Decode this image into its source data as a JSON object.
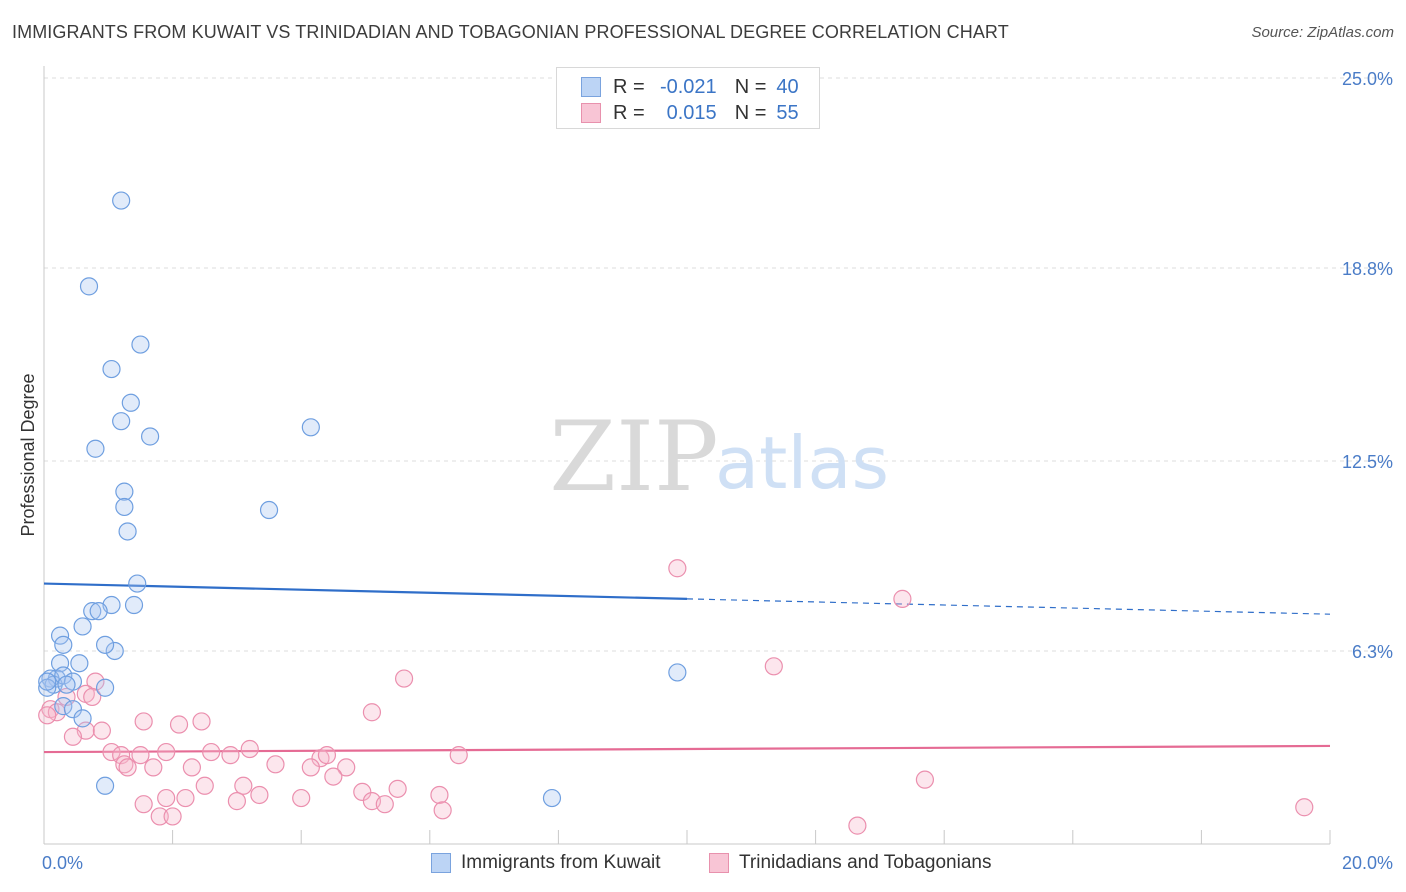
{
  "title": "IMMIGRANTS FROM KUWAIT VS TRINIDADIAN AND TOBAGONIAN PROFESSIONAL DEGREE CORRELATION CHART",
  "source": "Source: ZipAtlas.com",
  "watermark": {
    "zip": "ZIP",
    "atlas": "atlas"
  },
  "legend": {
    "r_label": "R =",
    "n_label": "N =",
    "rows": [
      {
        "r": "-0.021",
        "n": "40"
      },
      {
        "r": "0.015",
        "n": "55"
      }
    ]
  },
  "bottom_legend": [
    "Immigrants from Kuwait",
    "Trinidadians and Tobagonians"
  ],
  "chart_data": {
    "type": "scatter",
    "title": "IMMIGRANTS FROM KUWAIT VS TRINIDADIAN AND TOBAGONIAN PROFESSIONAL DEGREE CORRELATION CHART",
    "xlabel": "",
    "ylabel": "Professional Degree",
    "xlim": [
      0,
      20
    ],
    "ylim": [
      0,
      25
    ],
    "x_tick_labels": [
      "0.0%",
      "20.0%"
    ],
    "y_ticks": [
      6.3,
      12.5,
      18.8,
      25.0
    ],
    "y_tick_labels": [
      "6.3%",
      "12.5%",
      "18.8%",
      "25.0%"
    ],
    "grid": true,
    "colors": {
      "kuwait": "#6f9fe0",
      "trinidad": "#eb8fae",
      "kuwait_line": "#2f6ec9",
      "trinidad_line": "#e56b94"
    },
    "series": [
      {
        "name": "Immigrants from Kuwait",
        "r": -0.021,
        "n": 40,
        "trend": {
          "x": [
            0,
            20
          ],
          "y": [
            8.5,
            7.5
          ],
          "solid_until": 10
        },
        "points": [
          [
            1.2,
            21.0
          ],
          [
            0.7,
            18.2
          ],
          [
            1.5,
            16.3
          ],
          [
            1.05,
            15.5
          ],
          [
            1.35,
            14.4
          ],
          [
            1.2,
            13.8
          ],
          [
            1.65,
            13.3
          ],
          [
            0.8,
            12.9
          ],
          [
            4.15,
            13.6
          ],
          [
            1.25,
            11.5
          ],
          [
            1.25,
            11.0
          ],
          [
            1.3,
            10.2
          ],
          [
            3.5,
            10.9
          ],
          [
            1.45,
            8.5
          ],
          [
            1.05,
            7.8
          ],
          [
            1.4,
            7.8
          ],
          [
            0.75,
            7.6
          ],
          [
            0.85,
            7.6
          ],
          [
            0.6,
            7.1
          ],
          [
            0.25,
            6.8
          ],
          [
            0.3,
            6.5
          ],
          [
            1.1,
            6.3
          ],
          [
            0.95,
            6.5
          ],
          [
            0.55,
            5.9
          ],
          [
            0.25,
            5.9
          ],
          [
            0.2,
            5.4
          ],
          [
            0.1,
            5.4
          ],
          [
            0.15,
            5.2
          ],
          [
            0.05,
            5.1
          ],
          [
            0.3,
            5.5
          ],
          [
            0.45,
            5.3
          ],
          [
            0.35,
            5.2
          ],
          [
            0.95,
            5.1
          ],
          [
            0.3,
            4.5
          ],
          [
            0.45,
            4.4
          ],
          [
            0.6,
            4.1
          ],
          [
            0.95,
            1.9
          ],
          [
            7.9,
            1.5
          ],
          [
            9.85,
            5.6
          ],
          [
            0.05,
            5.3
          ]
        ]
      },
      {
        "name": "Trinidadians and Tobagonians",
        "r": 0.015,
        "n": 55,
        "trend": {
          "x": [
            0,
            20
          ],
          "y": [
            3.0,
            3.2
          ]
        },
        "points": [
          [
            9.85,
            9.0
          ],
          [
            13.35,
            8.0
          ],
          [
            11.35,
            5.8
          ],
          [
            5.6,
            5.4
          ],
          [
            0.8,
            5.3
          ],
          [
            0.65,
            4.9
          ],
          [
            0.75,
            4.8
          ],
          [
            0.35,
            4.8
          ],
          [
            0.1,
            4.4
          ],
          [
            0.2,
            4.3
          ],
          [
            0.05,
            4.2
          ],
          [
            5.1,
            4.3
          ],
          [
            1.55,
            4.0
          ],
          [
            2.1,
            3.9
          ],
          [
            2.45,
            4.0
          ],
          [
            0.65,
            3.7
          ],
          [
            0.9,
            3.7
          ],
          [
            0.45,
            3.5
          ],
          [
            1.05,
            3.0
          ],
          [
            1.2,
            2.9
          ],
          [
            1.5,
            2.9
          ],
          [
            1.9,
            3.0
          ],
          [
            2.6,
            3.0
          ],
          [
            2.9,
            2.9
          ],
          [
            3.2,
            3.1
          ],
          [
            4.3,
            2.8
          ],
          [
            4.4,
            2.9
          ],
          [
            6.45,
            2.9
          ],
          [
            1.25,
            2.6
          ],
          [
            1.3,
            2.5
          ],
          [
            1.7,
            2.5
          ],
          [
            2.3,
            2.5
          ],
          [
            3.6,
            2.6
          ],
          [
            4.15,
            2.5
          ],
          [
            4.7,
            2.5
          ],
          [
            4.5,
            2.2
          ],
          [
            2.5,
            1.9
          ],
          [
            3.1,
            1.9
          ],
          [
            3.35,
            1.6
          ],
          [
            4.95,
            1.7
          ],
          [
            5.5,
            1.8
          ],
          [
            6.15,
            1.6
          ],
          [
            2.2,
            1.5
          ],
          [
            3.0,
            1.4
          ],
          [
            1.55,
            1.3
          ],
          [
            1.9,
            1.5
          ],
          [
            4.0,
            1.5
          ],
          [
            5.1,
            1.4
          ],
          [
            5.3,
            1.3
          ],
          [
            6.2,
            1.1
          ],
          [
            13.7,
            2.1
          ],
          [
            19.6,
            1.2
          ],
          [
            12.65,
            0.6
          ],
          [
            1.8,
            0.9
          ],
          [
            2.0,
            0.9
          ]
        ]
      }
    ]
  }
}
